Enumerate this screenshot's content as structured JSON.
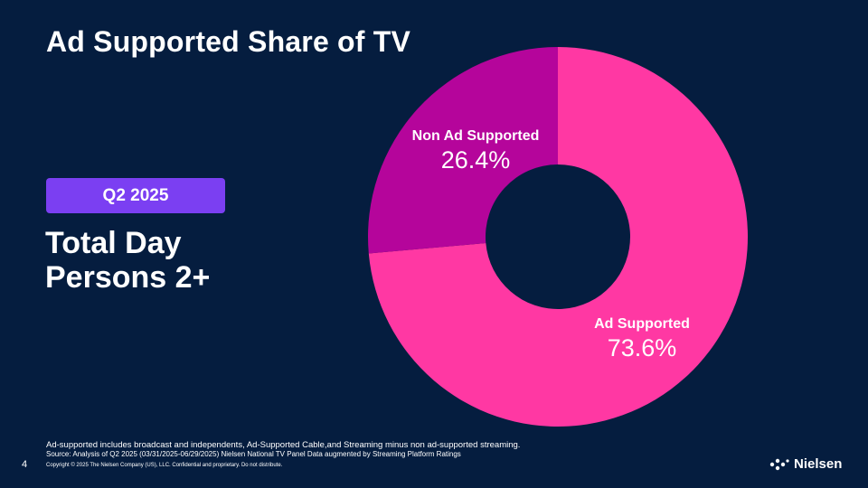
{
  "slide": {
    "title": "Ad Supported Share of TV",
    "period_badge": "Q2 2025",
    "subtitle_line1": "Total Day",
    "subtitle_line2": "Persons 2+",
    "footnote": "Ad-supported includes broadcast and independents, Ad-Supported Cable,and Streaming minus non ad-supported streaming.",
    "source": "Source: Analysis of Q2 2025 (03/31/2025-06/29/2025)  Nielsen National TV Panel Data augmented by Streaming Platform Ratings",
    "page_number": "4",
    "copyright": "Copyright © 2025 The Nielsen Company (US), LLC. Confidential and proprietary. Do not distribute.",
    "brand_name": "Nielsen",
    "brand_icon": "nielsen-dots-logo"
  },
  "colors": {
    "background": "#051d3f",
    "badge": "#7b3ff2",
    "ad_supported": "#ff38a3",
    "non_ad_supported": "#b5059b"
  },
  "chart_data": {
    "type": "pie",
    "donut": true,
    "slices": [
      {
        "label": "Ad Supported",
        "value": 73.6,
        "display": "73.6%",
        "color": "#ff38a3"
      },
      {
        "label": "Non Ad Supported",
        "value": 26.4,
        "display": "26.4%",
        "color": "#b5059b"
      }
    ],
    "start": "top, clockwise",
    "legend": "none"
  }
}
